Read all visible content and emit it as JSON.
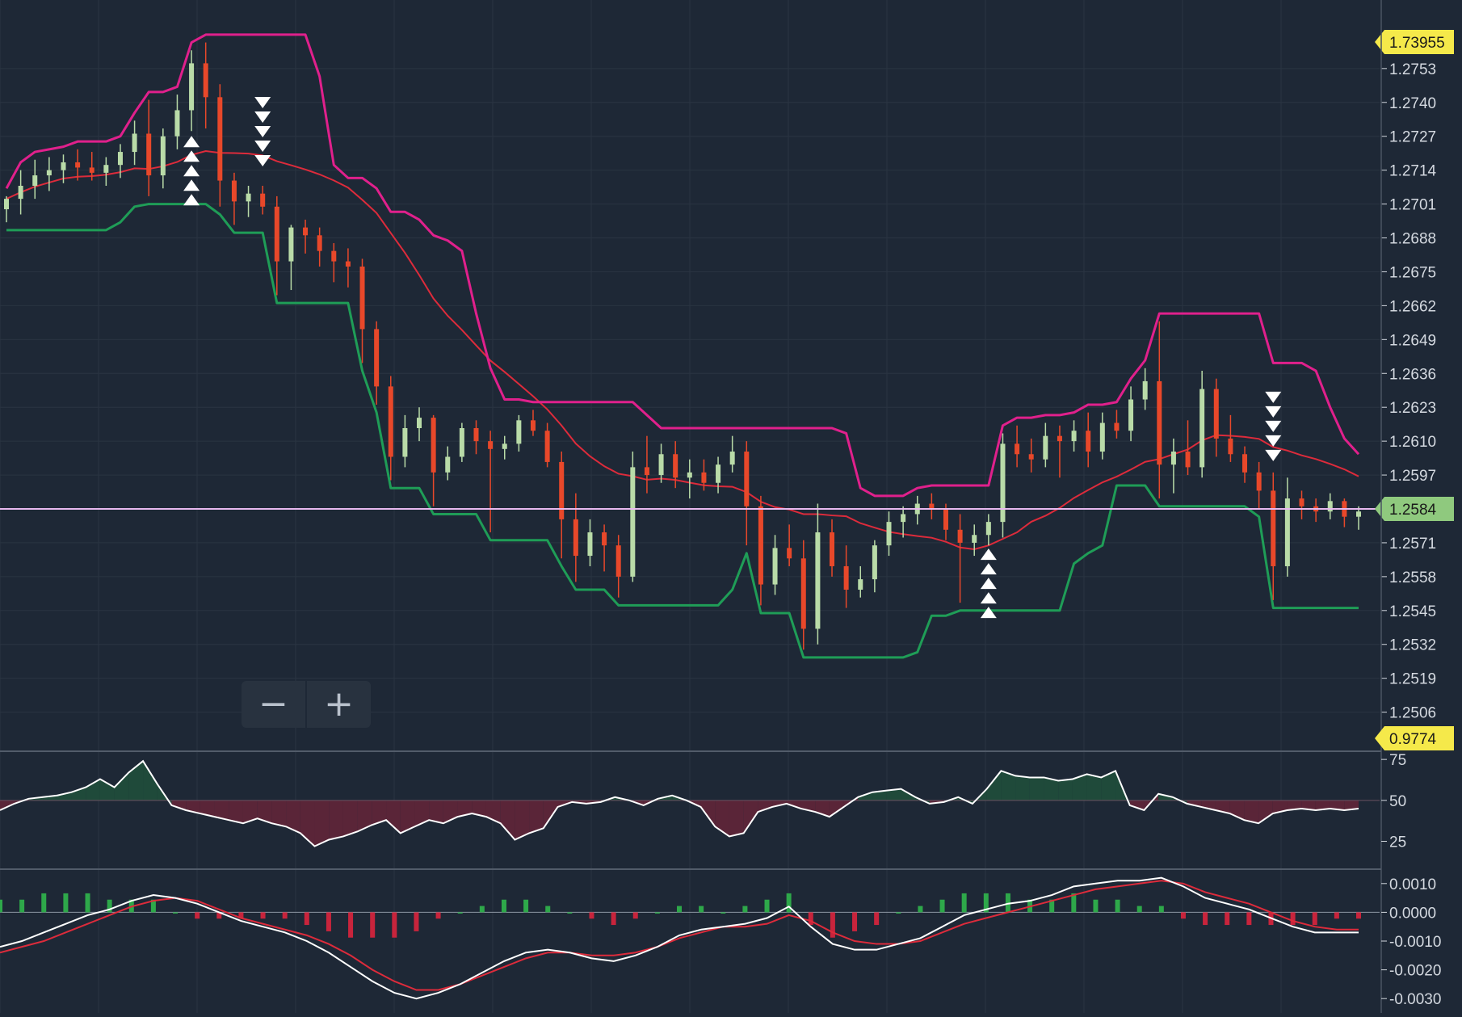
{
  "theme": {
    "background": "#1e2836",
    "grid": "#2a3442",
    "axis_text": "#d4d9e0",
    "candle_up": "#b9dba8",
    "candle_down": "#e8482a",
    "upper_band": "#e0208c",
    "lower_band": "#1f9d57",
    "moving_average": "#dd2b3b",
    "current_price_line": "#e7b8ee",
    "current_price_tag": "#8fc97e",
    "yellow_tag": "#f5e94a",
    "osc_line": "#ffffff",
    "osc_fill_above": "#1f4a3a",
    "osc_fill_below": "#5a2538",
    "hist_up": "#2ea84a",
    "hist_down": "#c8243c"
  },
  "zoom": {
    "minus_label": "−",
    "plus_label": "+"
  },
  "axis_tags": {
    "top_price": "1.73955",
    "current_price": "1.2584",
    "panel_tag": "0.9774"
  },
  "chart_data": [
    {
      "type": "candlestick",
      "panel": "price",
      "y_ticks": [
        "1.2753",
        "1.2740",
        "1.2727",
        "1.2714",
        "1.2701",
        "1.2688",
        "1.2675",
        "1.2662",
        "1.2649",
        "1.2636",
        "1.2623",
        "1.2610",
        "1.2597",
        "1.2584",
        "1.2571",
        "1.2558",
        "1.2545",
        "1.2532",
        "1.2519",
        "1.2506"
      ],
      "ylim": [
        1.2491,
        1.277
      ],
      "candles": [
        [
          1.2699,
          1.2704,
          1.2694,
          1.2703
        ],
        [
          1.2703,
          1.2714,
          1.2697,
          1.2708
        ],
        [
          1.2708,
          1.2718,
          1.2703,
          1.2712
        ],
        [
          1.2712,
          1.2719,
          1.2706,
          1.2714
        ],
        [
          1.2714,
          1.272,
          1.2709,
          1.2717
        ],
        [
          1.2717,
          1.2722,
          1.271,
          1.2715
        ],
        [
          1.2715,
          1.2721,
          1.271,
          1.2713
        ],
        [
          1.2713,
          1.2719,
          1.2708,
          1.2716
        ],
        [
          1.2716,
          1.2724,
          1.2711,
          1.2721
        ],
        [
          1.2721,
          1.2733,
          1.2716,
          1.2728
        ],
        [
          1.2728,
          1.2741,
          1.2704,
          1.2712
        ],
        [
          1.2712,
          1.273,
          1.2707,
          1.2727
        ],
        [
          1.2727,
          1.2743,
          1.2722,
          1.2737
        ],
        [
          1.2737,
          1.276,
          1.2729,
          1.2755
        ],
        [
          1.2755,
          1.2763,
          1.273,
          1.2742
        ],
        [
          1.2742,
          1.2747,
          1.27,
          1.271
        ],
        [
          1.271,
          1.2713,
          1.2693,
          1.2702
        ],
        [
          1.2702,
          1.2708,
          1.2696,
          1.2705
        ],
        [
          1.2705,
          1.2708,
          1.2697,
          1.27
        ],
        [
          1.27,
          1.2704,
          1.2666,
          1.2679
        ],
        [
          1.2679,
          1.2693,
          1.2668,
          1.2692
        ],
        [
          1.2692,
          1.2695,
          1.2682,
          1.2689
        ],
        [
          1.2689,
          1.2692,
          1.2677,
          1.2683
        ],
        [
          1.2683,
          1.2686,
          1.2671,
          1.2679
        ],
        [
          1.2679,
          1.2684,
          1.2669,
          1.2677
        ],
        [
          1.2677,
          1.268,
          1.264,
          1.2653
        ],
        [
          1.2653,
          1.2656,
          1.2624,
          1.2631
        ],
        [
          1.2631,
          1.2635,
          1.2595,
          1.2604
        ],
        [
          1.2604,
          1.262,
          1.26,
          1.2615
        ],
        [
          1.2615,
          1.2623,
          1.261,
          1.2619
        ],
        [
          1.2619,
          1.262,
          1.2585,
          1.2598
        ],
        [
          1.2598,
          1.2608,
          1.2595,
          1.2604
        ],
        [
          1.2604,
          1.2617,
          1.2602,
          1.2615
        ],
        [
          1.2615,
          1.2618,
          1.2605,
          1.261
        ],
        [
          1.261,
          1.2614,
          1.2575,
          1.2607
        ],
        [
          1.2607,
          1.2612,
          1.2603,
          1.2609
        ],
        [
          1.2609,
          1.262,
          1.2606,
          1.2618
        ],
        [
          1.2618,
          1.2622,
          1.2612,
          1.2614
        ],
        [
          1.2614,
          1.2617,
          1.26,
          1.2602
        ],
        [
          1.2602,
          1.2606,
          1.2565,
          1.258
        ],
        [
          1.258,
          1.259,
          1.2556,
          1.2566
        ],
        [
          1.2566,
          1.258,
          1.2562,
          1.2575
        ],
        [
          1.2575,
          1.2578,
          1.256,
          1.257
        ],
        [
          1.257,
          1.2574,
          1.255,
          1.2558
        ],
        [
          1.2558,
          1.2606,
          1.2556,
          1.26
        ],
        [
          1.26,
          1.2612,
          1.259,
          1.2597
        ],
        [
          1.2597,
          1.2609,
          1.2594,
          1.2605
        ],
        [
          1.2605,
          1.261,
          1.2592,
          1.2596
        ],
        [
          1.2596,
          1.2603,
          1.2588,
          1.2598
        ],
        [
          1.2598,
          1.2603,
          1.2591,
          1.2594
        ],
        [
          1.2594,
          1.2604,
          1.259,
          1.2601
        ],
        [
          1.2601,
          1.2612,
          1.2598,
          1.2606
        ],
        [
          1.2606,
          1.261,
          1.257,
          1.2585
        ],
        [
          1.2585,
          1.2589,
          1.2547,
          1.2555
        ],
        [
          1.2555,
          1.2574,
          1.2551,
          1.2569
        ],
        [
          1.2569,
          1.2578,
          1.2562,
          1.2565
        ],
        [
          1.2565,
          1.2572,
          1.253,
          1.2538
        ],
        [
          1.2538,
          1.2586,
          1.2532,
          1.2575
        ],
        [
          1.2575,
          1.258,
          1.2558,
          1.2562
        ],
        [
          1.2562,
          1.257,
          1.2546,
          1.2553
        ],
        [
          1.2553,
          1.2562,
          1.255,
          1.2557
        ],
        [
          1.2557,
          1.2572,
          1.2552,
          1.257
        ],
        [
          1.257,
          1.2583,
          1.2566,
          1.2579
        ],
        [
          1.2579,
          1.2585,
          1.2573,
          1.2582
        ],
        [
          1.2582,
          1.2589,
          1.2578,
          1.2586
        ],
        [
          1.2586,
          1.259,
          1.258,
          1.2584
        ],
        [
          1.2584,
          1.2586,
          1.2572,
          1.2576
        ],
        [
          1.2576,
          1.2582,
          1.2548,
          1.2571
        ],
        [
          1.2571,
          1.2578,
          1.2566,
          1.2574
        ],
        [
          1.2574,
          1.2582,
          1.257,
          1.2579
        ],
        [
          1.2579,
          1.2613,
          1.2573,
          1.2609
        ],
        [
          1.2609,
          1.2616,
          1.26,
          1.2605
        ],
        [
          1.2605,
          1.2611,
          1.2598,
          1.2603
        ],
        [
          1.2603,
          1.2617,
          1.26,
          1.2612
        ],
        [
          1.2612,
          1.2616,
          1.2596,
          1.261
        ],
        [
          1.261,
          1.2618,
          1.2606,
          1.2614
        ],
        [
          1.2614,
          1.2621,
          1.26,
          1.2606
        ],
        [
          1.2606,
          1.2621,
          1.2603,
          1.2617
        ],
        [
          1.2617,
          1.2622,
          1.2611,
          1.2614
        ],
        [
          1.2614,
          1.2631,
          1.261,
          1.2626
        ],
        [
          1.2626,
          1.2638,
          1.2622,
          1.2633
        ],
        [
          1.2633,
          1.2656,
          1.2588,
          1.2601
        ],
        [
          1.2601,
          1.2611,
          1.259,
          1.2606
        ],
        [
          1.2606,
          1.2618,
          1.2597,
          1.26
        ],
        [
          1.26,
          1.2637,
          1.2596,
          1.263
        ],
        [
          1.263,
          1.2634,
          1.2604,
          1.2611
        ],
        [
          1.2611,
          1.262,
          1.2602,
          1.2605
        ],
        [
          1.2605,
          1.2608,
          1.2594,
          1.2598
        ],
        [
          1.2598,
          1.2602,
          1.2584,
          1.2591
        ],
        [
          1.2591,
          1.2598,
          1.2549,
          1.2562
        ],
        [
          1.2562,
          1.2596,
          1.2558,
          1.2588
        ],
        [
          1.2588,
          1.2591,
          1.258,
          1.2585
        ],
        [
          1.2585,
          1.2588,
          1.2579,
          1.2583
        ],
        [
          1.2583,
          1.259,
          1.258,
          1.2587
        ],
        [
          1.2587,
          1.2588,
          1.2577,
          1.2581
        ],
        [
          1.2581,
          1.2585,
          1.2576,
          1.2583
        ]
      ]
    },
    {
      "type": "line",
      "panel": "oscillator",
      "y_ticks": [
        "75",
        "50",
        "25"
      ],
      "ylim": [
        8,
        80
      ],
      "midline": 50,
      "values": [
        44,
        48,
        51,
        52,
        53,
        55,
        58,
        63,
        58,
        67,
        74,
        60,
        47,
        44,
        42,
        40,
        38,
        36,
        39,
        36,
        34,
        30,
        22,
        26,
        28,
        31,
        35,
        38,
        30,
        34,
        38,
        36,
        40,
        42,
        40,
        36,
        26,
        30,
        33,
        46,
        49,
        48,
        49,
        52,
        50,
        47,
        51,
        53,
        50,
        46,
        34,
        28,
        30,
        43,
        46,
        48,
        45,
        43,
        40,
        46,
        52,
        55,
        56,
        57,
        52,
        48,
        49,
        52,
        48,
        57,
        68,
        65,
        64,
        64,
        62,
        63,
        66,
        64,
        68,
        47,
        44,
        54,
        52,
        48,
        46,
        44,
        42,
        38,
        36,
        42,
        44,
        45,
        44,
        45,
        44,
        45
      ]
    },
    {
      "type": "bar",
      "panel": "macd",
      "y_ticks": [
        "0.0010",
        "0.0000",
        "-0.0010",
        "-0.0020",
        "-0.0030"
      ],
      "ylim": [
        -0.0035,
        0.0015
      ],
      "series": [
        {
          "values": [
            -0.0012,
            -0.001,
            -0.0007,
            -0.0004,
            -0.0001,
            0.0001,
            0.0004,
            0.0006,
            0.0005,
            0.0003,
            0.0,
            -0.0003,
            -0.0005,
            -0.0007,
            -0.001,
            -0.0014,
            -0.0019,
            -0.0024,
            -0.0028,
            -0.003,
            -0.0028,
            -0.0025,
            -0.0021,
            -0.0017,
            -0.0014,
            -0.0013,
            -0.0014,
            -0.0016,
            -0.0017,
            -0.0015,
            -0.0012,
            -0.0008,
            -0.0006,
            -0.0005,
            -0.0004,
            -0.0002,
            0.0002,
            -0.0005,
            -0.0011,
            -0.0013,
            -0.0013,
            -0.0011,
            -0.0009,
            -0.0005,
            -0.0001,
            0.0001,
            0.0003,
            0.0004,
            0.0006,
            0.0009,
            0.001,
            0.0011,
            0.0011,
            0.0012,
            0.0009,
            0.0005,
            0.0003,
            0.0001,
            -0.0002,
            -0.0005,
            -0.0007,
            -0.0007,
            -0.0007
          ]
        },
        {
          "values": [
            -0.0014,
            -0.0012,
            -0.001,
            -0.0007,
            -0.0004,
            -0.0001,
            0.0002,
            0.0004,
            0.0005,
            0.0004,
            0.0001,
            -0.0002,
            -0.0004,
            -0.0006,
            -0.0008,
            -0.0011,
            -0.0015,
            -0.002,
            -0.0024,
            -0.0027,
            -0.0027,
            -0.0025,
            -0.0022,
            -0.0019,
            -0.0016,
            -0.0014,
            -0.0014,
            -0.0015,
            -0.0015,
            -0.0014,
            -0.0012,
            -0.0009,
            -0.0007,
            -0.0005,
            -0.0005,
            -0.0004,
            -0.0001,
            -0.0003,
            -0.0007,
            -0.001,
            -0.0011,
            -0.0011,
            -0.001,
            -0.0007,
            -0.0004,
            -0.0002,
            0.0,
            0.0002,
            0.0004,
            0.0006,
            0.0008,
            0.0009,
            0.001,
            0.0011,
            0.001,
            0.0007,
            0.0005,
            0.0003,
            0.0,
            -0.0003,
            -0.0005,
            -0.0006,
            -0.0006
          ]
        }
      ]
    }
  ]
}
